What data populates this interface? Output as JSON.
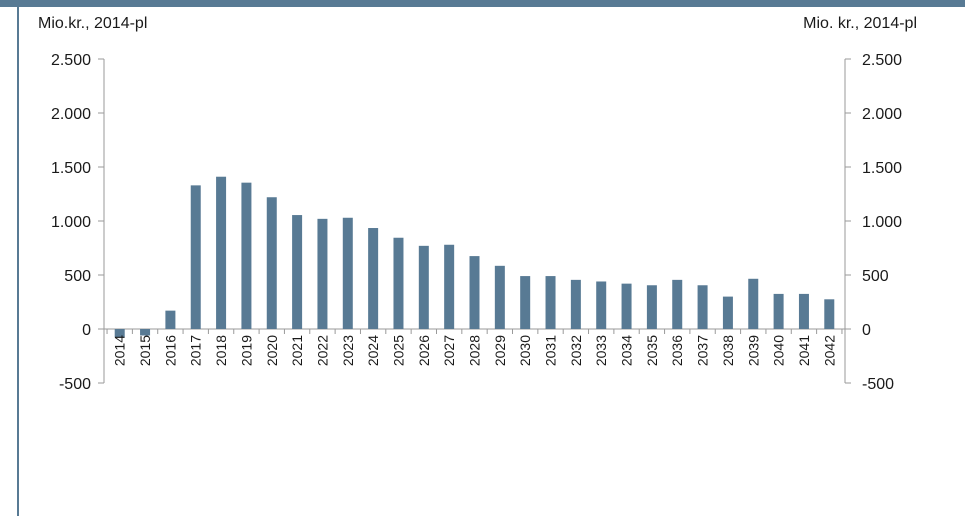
{
  "colors": {
    "frame": "#587a94",
    "bar": "#587a94",
    "axis": "#9a9a9a",
    "text": "#1a1a1a"
  },
  "chart_data": {
    "type": "bar",
    "ylabel_left": "Mio.kr., 2014-pl",
    "ylabel_right": "Mio. kr., 2014-pl",
    "ylim": [
      -500,
      2500
    ],
    "yticks": [
      2500,
      2000,
      1500,
      1000,
      500,
      0,
      -500
    ],
    "ytick_labels": [
      "2.500",
      "2.000",
      "1.500",
      "1.000",
      "500",
      "0",
      "-500"
    ],
    "categories": [
      "2014",
      "2015",
      "2016",
      "2017",
      "2018",
      "2019",
      "2020",
      "2021",
      "2022",
      "2023",
      "2024",
      "2025",
      "2026",
      "2027",
      "2028",
      "2029",
      "2030",
      "2031",
      "2032",
      "2033",
      "2034",
      "2035",
      "2036",
      "2037",
      "2038",
      "2039",
      "2040",
      "2041",
      "2042"
    ],
    "values": [
      -80,
      -60,
      170,
      1330,
      1410,
      1355,
      1220,
      1055,
      1020,
      1030,
      935,
      845,
      770,
      780,
      675,
      585,
      490,
      490,
      455,
      440,
      420,
      405,
      455,
      405,
      300,
      465,
      325,
      325,
      275
    ],
    "grid": false,
    "legend": "none"
  }
}
